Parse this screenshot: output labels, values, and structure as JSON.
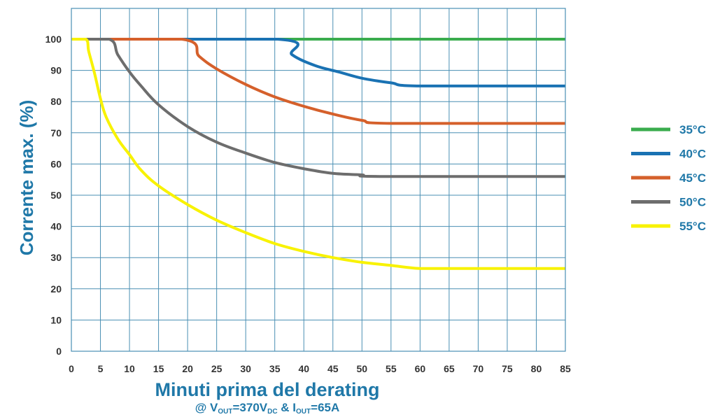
{
  "chart_data": {
    "type": "line",
    "ylabel": "Corrente max. (%)",
    "xlabel": "Minuti prima del derating",
    "subtitle": {
      "prefix": "@ V",
      "vout_sub": "OUT",
      "mid1": "=370V",
      "dc_sub": "DC",
      "mid2": " & I",
      "iout_sub": "OUT",
      "suffix": "=65A"
    },
    "xlim": [
      0,
      85
    ],
    "ylim": [
      0,
      105
    ],
    "x_ticks": [
      0,
      5,
      10,
      15,
      20,
      25,
      30,
      35,
      40,
      45,
      50,
      55,
      60,
      65,
      70,
      75,
      80,
      85
    ],
    "y_ticks": [
      0,
      10,
      20,
      30,
      40,
      50,
      60,
      70,
      80,
      90,
      100
    ],
    "grid": true,
    "legend_position": "right",
    "series": [
      {
        "name": "35°C",
        "color": "#3aac4e",
        "x": [
          0,
          85
        ],
        "y": [
          100,
          100
        ]
      },
      {
        "name": "40°C",
        "color": "#1a72b3",
        "x": [
          0,
          35.5,
          38,
          42,
          46,
          50,
          55,
          60,
          85
        ],
        "y": [
          100,
          100,
          95,
          91.5,
          89.5,
          87.5,
          86,
          85,
          85
        ]
      },
      {
        "name": "45°C",
        "color": "#d5602b",
        "x": [
          0,
          19,
          22,
          25,
          30,
          35,
          40,
          45,
          50,
          55,
          85
        ],
        "y": [
          100,
          100,
          94.5,
          90.5,
          85.5,
          81.5,
          78.5,
          76,
          74,
          73,
          73
        ]
      },
      {
        "name": "50°C",
        "color": "#6d6d6d",
        "x": [
          0,
          6.5,
          8,
          10,
          12,
          15,
          20,
          25,
          30,
          35,
          40,
          45,
          50,
          53,
          85
        ],
        "y": [
          100,
          100,
          95,
          89.5,
          85,
          79,
          72,
          67,
          63.5,
          60.5,
          58.5,
          57,
          56.5,
          56,
          56
        ]
      },
      {
        "name": "55°C",
        "color": "#f8f200",
        "x": [
          0,
          2.5,
          3,
          4,
          5,
          6,
          8,
          10,
          12,
          15,
          20,
          25,
          30,
          35,
          40,
          45,
          50,
          55,
          60,
          65,
          85
        ],
        "y": [
          100,
          100,
          96,
          89,
          81,
          75,
          68,
          63,
          58,
          53,
          47,
          42,
          38,
          34.5,
          32,
          30,
          28.5,
          27.5,
          26.5,
          26.5,
          26.5
        ]
      }
    ]
  }
}
